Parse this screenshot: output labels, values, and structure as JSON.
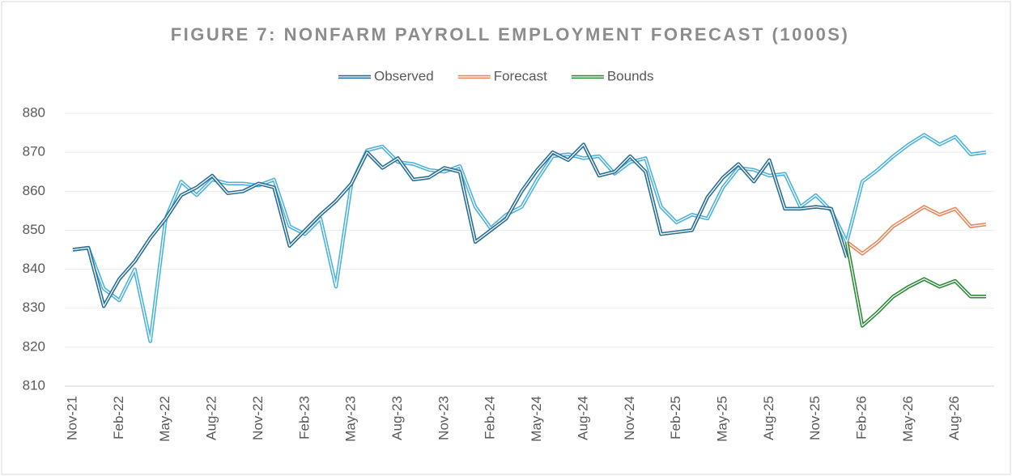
{
  "chart_data": {
    "type": "line",
    "title": "FIGURE 7: NONFARM PAYROLL EMPLOYMENT FORECAST (1000S)",
    "categories": [
      "Nov-21",
      null,
      null,
      "Feb-22",
      null,
      null,
      "May-22",
      null,
      null,
      "Aug-22",
      null,
      null,
      "Nov-22",
      null,
      null,
      "Feb-23",
      null,
      null,
      "May-23",
      null,
      null,
      "Aug-23",
      null,
      null,
      "Nov-23",
      null,
      null,
      "Feb-24",
      null,
      null,
      "May-24",
      null,
      null,
      "Aug-24",
      null,
      null,
      "Nov-24",
      null,
      null,
      "Feb-25",
      null,
      null,
      "May-25",
      null,
      null,
      "Aug-25",
      null,
      null,
      "Nov-25",
      null,
      null,
      "Feb-26",
      null,
      null,
      "May-26",
      null,
      null,
      "Aug-26",
      null,
      null
    ],
    "series": [
      {
        "color": "#4db3dc",
        "values": [
          845,
          845.5,
          835,
          832,
          840,
          821.5,
          853,
          862.5,
          859,
          863,
          862,
          862,
          861.5,
          863,
          851,
          849,
          853,
          835.5,
          862,
          870.5,
          871.5,
          867.5,
          867,
          865.5,
          865,
          866.5,
          856,
          850.5,
          854,
          856,
          863,
          869,
          869.5,
          868.5,
          869,
          864.5,
          867.5,
          868.5,
          856,
          852,
          854,
          853,
          861,
          866,
          865.5,
          864,
          864.5,
          856,
          859,
          855,
          847,
          862.5,
          865.5,
          869,
          872,
          874.5,
          872,
          874,
          869.5,
          870
        ]
      },
      {
        "name": "Observed",
        "color": "#2a6f97",
        "values": [
          845,
          845.5,
          830.5,
          837.5,
          842,
          848,
          853,
          859,
          861,
          864,
          859.5,
          860,
          862,
          861,
          846,
          850,
          854,
          857.5,
          862,
          870,
          866,
          868.5,
          863,
          863.5,
          866,
          865,
          847,
          850,
          853,
          860,
          865.5,
          870,
          868,
          872,
          864,
          865,
          869,
          865,
          849,
          849.5,
          850,
          858.5,
          863.5,
          867,
          862.5,
          868,
          855.5,
          855.5,
          856,
          855.5,
          843,
          null,
          null,
          null,
          null,
          null,
          null,
          null,
          null,
          null
        ]
      },
      {
        "name": "Forecast",
        "color": "#e8875a",
        "values": [
          null,
          null,
          null,
          null,
          null,
          null,
          null,
          null,
          null,
          null,
          null,
          null,
          null,
          null,
          null,
          null,
          null,
          null,
          null,
          null,
          null,
          null,
          null,
          null,
          null,
          null,
          null,
          null,
          null,
          null,
          null,
          null,
          null,
          null,
          null,
          null,
          null,
          null,
          null,
          null,
          null,
          null,
          null,
          null,
          null,
          null,
          null,
          null,
          null,
          null,
          847,
          844,
          847,
          851,
          853.5,
          856,
          854,
          855.5,
          851,
          851.5
        ]
      },
      {
        "name": "Bounds",
        "color": "#2e8b3a",
        "values": [
          null,
          null,
          null,
          null,
          null,
          null,
          null,
          null,
          null,
          null,
          null,
          null,
          null,
          null,
          null,
          null,
          null,
          null,
          null,
          null,
          null,
          null,
          null,
          null,
          null,
          null,
          null,
          null,
          null,
          null,
          null,
          null,
          null,
          null,
          null,
          null,
          null,
          null,
          null,
          null,
          null,
          null,
          null,
          null,
          null,
          null,
          null,
          null,
          null,
          null,
          847,
          825.5,
          829,
          833,
          835.5,
          837.5,
          835.5,
          837,
          833,
          833
        ]
      }
    ],
    "ylim": [
      810,
      880
    ],
    "yticks": [
      810,
      820,
      830,
      840,
      850,
      860,
      870,
      880
    ],
    "grid": true
  }
}
